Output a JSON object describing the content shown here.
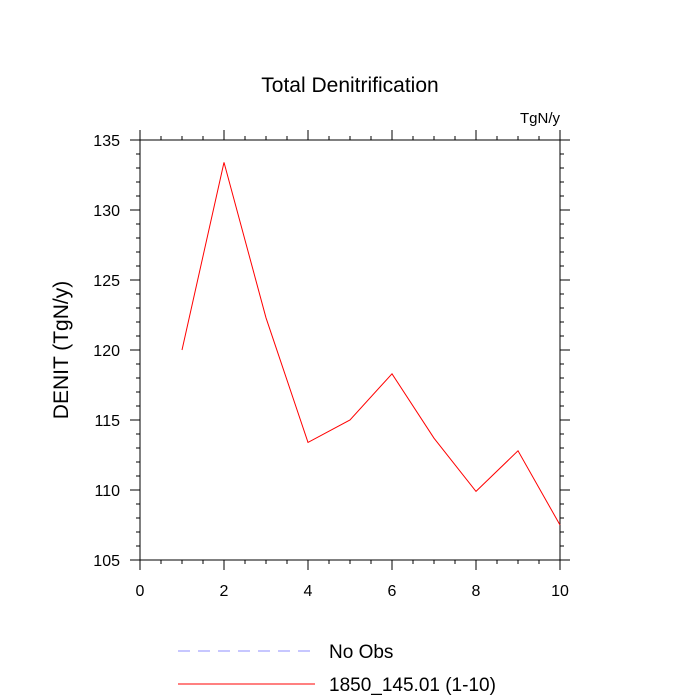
{
  "chart_data": {
    "type": "line",
    "title": "Total Denitrification",
    "units_label": "TgN/y",
    "xlabel": "",
    "ylabel": "DENIT  (TgN/y)",
    "xlim": [
      0,
      10
    ],
    "ylim": [
      105,
      135
    ],
    "x_ticks": [
      0,
      2,
      4,
      6,
      8,
      10
    ],
    "y_ticks": [
      105,
      110,
      115,
      120,
      125,
      130,
      135
    ],
    "grid": false,
    "legend_position": "bottom",
    "series": [
      {
        "name": "No Obs",
        "color": "#8f8fff",
        "style": "dashed",
        "x": [],
        "y": []
      },
      {
        "name": "1850_145.01 (1-10)",
        "color": "#ff0000",
        "style": "solid",
        "x": [
          1,
          2,
          3,
          4,
          5,
          6,
          7,
          8,
          9,
          10
        ],
        "y": [
          120.0,
          133.4,
          122.3,
          113.4,
          115.0,
          118.3,
          113.7,
          109.9,
          112.8,
          107.5
        ]
      }
    ]
  }
}
